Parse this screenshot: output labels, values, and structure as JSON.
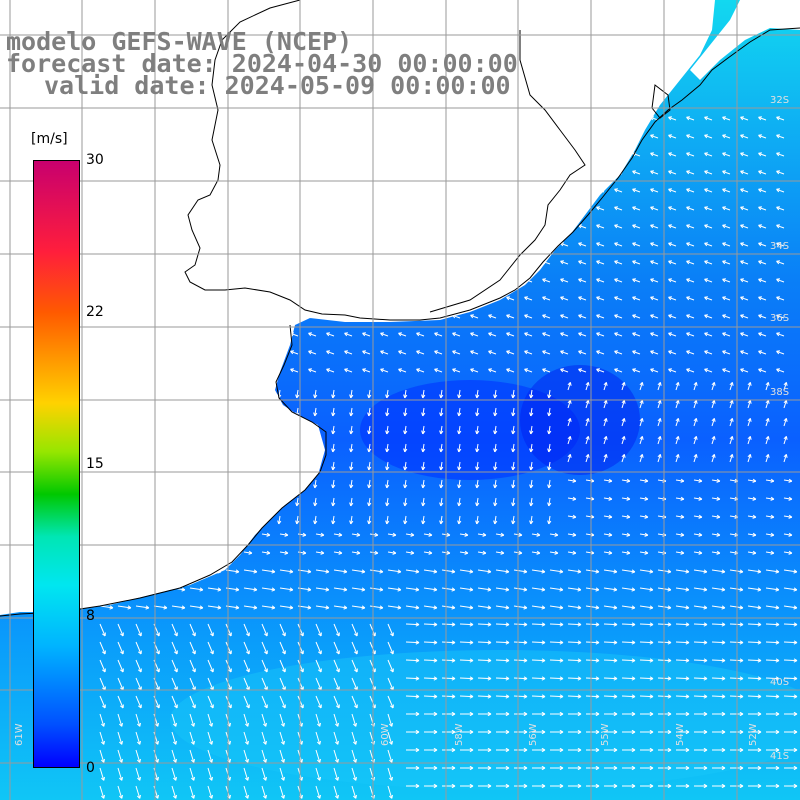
{
  "title": {
    "line1": "modelo GEFS-WAVE (NCEP)",
    "line2": "forecast date: 2024-04-30 00:00:00",
    "line3": "valid date: 2024-05-09 00:00:00"
  },
  "colorbar": {
    "unit": "[m/s]",
    "min": 0,
    "max": 30,
    "ticks": [
      "30",
      "22",
      "15",
      "8",
      "0"
    ],
    "tick_values": [
      30,
      22,
      15,
      8,
      0
    ],
    "colors": [
      "#0000ff",
      "#0050ff",
      "#00b4ff",
      "#00e6f0",
      "#00e6b4",
      "#00c800",
      "#96e600",
      "#ffd200",
      "#ff5a00",
      "#ff1e3c",
      "#c8006e"
    ]
  },
  "map": {
    "land_color": "#ffffff",
    "coastline_color": "#000000",
    "grid_color": "#9a9a9a",
    "lat_labels": [
      "32S",
      "34S",
      "36S",
      "38S",
      "40S",
      "41S"
    ],
    "lon_labels": [
      "61W",
      "60W",
      "58W",
      "56W",
      "55W",
      "54W",
      "52W"
    ]
  }
}
